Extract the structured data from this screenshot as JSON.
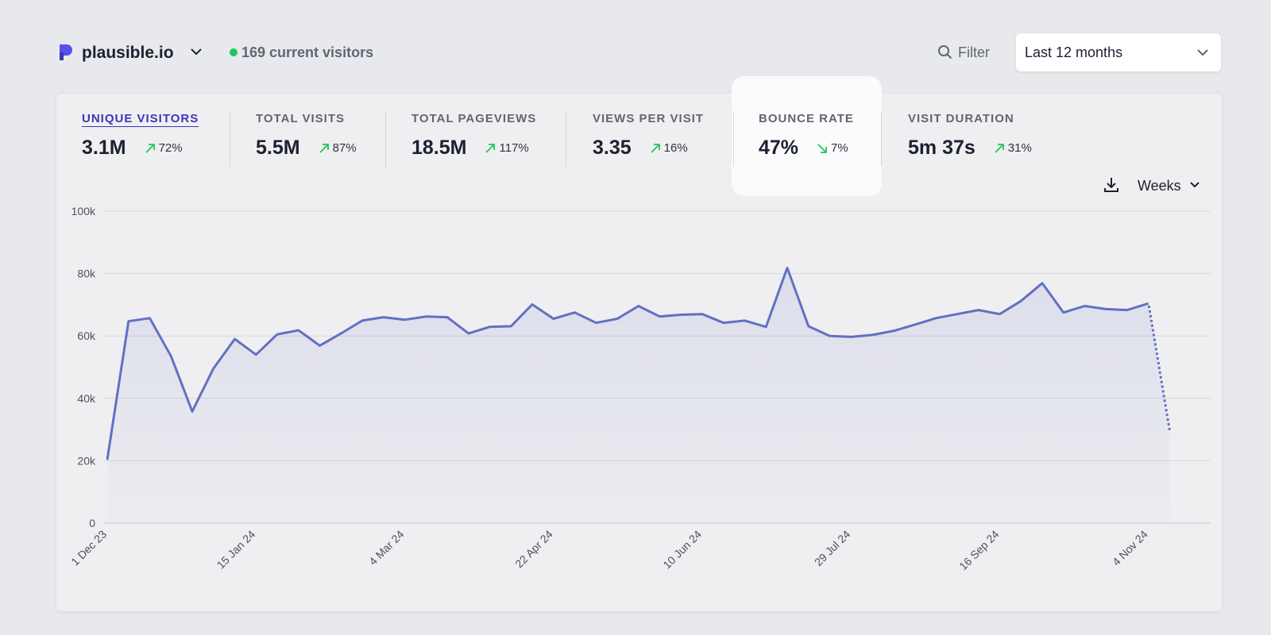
{
  "header": {
    "site": "plausible.io",
    "current_visitors": "169 current visitors",
    "filter": "Filter",
    "period": "Last 12 months"
  },
  "metrics": [
    {
      "label": "UNIQUE VISITORS",
      "value": "3.1M",
      "change": "72%",
      "direction": "up"
    },
    {
      "label": "TOTAL VISITS",
      "value": "5.5M",
      "change": "87%",
      "direction": "up"
    },
    {
      "label": "TOTAL PAGEVIEWS",
      "value": "18.5M",
      "change": "117%",
      "direction": "up"
    },
    {
      "label": "VIEWS PER VISIT",
      "value": "3.35",
      "change": "16%",
      "direction": "up"
    },
    {
      "label": "BOUNCE RATE",
      "value": "47%",
      "change": "7%",
      "direction": "down"
    },
    {
      "label": "VISIT DURATION",
      "value": "5m 37s",
      "change": "31%",
      "direction": "up"
    }
  ],
  "interval": "Weeks",
  "chart_data": {
    "type": "line",
    "categories": [
      "1 Dec 23",
      null,
      null,
      null,
      null,
      null,
      null,
      "15 Jan 24",
      null,
      null,
      null,
      null,
      null,
      null,
      "4 Mar 24",
      null,
      null,
      null,
      null,
      null,
      null,
      "22 Apr 24",
      null,
      null,
      null,
      null,
      null,
      null,
      "10 Jun 24",
      null,
      null,
      null,
      null,
      null,
      null,
      "29 Jul 24",
      null,
      null,
      null,
      null,
      null,
      null,
      "16 Sep 24",
      null,
      null,
      null,
      null,
      null,
      null,
      "4 Nov 24",
      null
    ],
    "series": [
      {
        "name": "Unique visitors",
        "color": "#6270c3",
        "values": [
          20300,
          64700,
          65700,
          53500,
          35800,
          49600,
          59000,
          54000,
          60500,
          61800,
          56900,
          60800,
          64900,
          66000,
          65200,
          66200,
          66000,
          60800,
          62900,
          63100,
          70100,
          65500,
          67500,
          64200,
          65500,
          69600,
          66200,
          66800,
          67000,
          64200,
          64900,
          62900,
          81800,
          63100,
          60000,
          59700,
          60300,
          61600,
          63600,
          65700,
          67000,
          68300,
          67000,
          71200,
          76900,
          67500,
          69600,
          68600,
          68300,
          70400,
          29600
        ]
      }
    ],
    "ylim": [
      0,
      100000
    ],
    "yticks": [
      {
        "value": 0,
        "label": "0"
      },
      {
        "value": 20000,
        "label": "20k"
      },
      {
        "value": 40000,
        "label": "40k"
      },
      {
        "value": 60000,
        "label": "60k"
      },
      {
        "value": 80000,
        "label": "80k"
      },
      {
        "value": 100000,
        "label": "100k"
      }
    ],
    "grid": true,
    "dotted_last_segment": true
  }
}
